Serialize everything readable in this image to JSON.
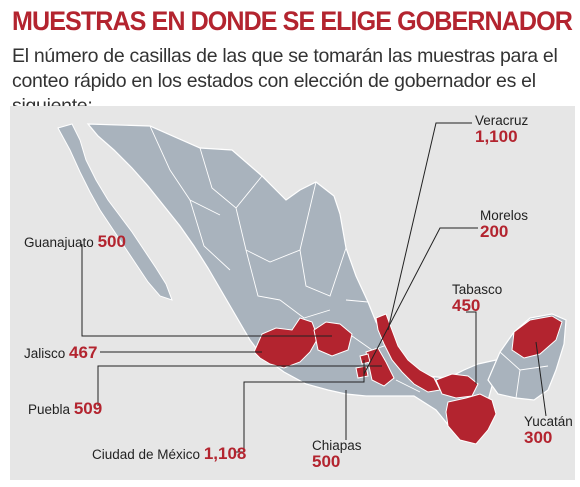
{
  "header": {
    "title": "MUESTRAS EN DONDE SE ELIGE GOBERNADOR",
    "subtitle": "El número de casillas de las que se tomarán las muestras para el conteo rápido en los estados con elección de gobernador es el siguiente:"
  },
  "colors": {
    "accent": "#b3242f",
    "land": "#a9b3bd",
    "highlight": "#b3242f",
    "background": "#e6e6e6"
  },
  "states": [
    {
      "name": "Veracruz",
      "value": "1,100"
    },
    {
      "name": "Morelos",
      "value": "200"
    },
    {
      "name": "Guanajuato",
      "value": "500"
    },
    {
      "name": "Tabasco",
      "value": "450"
    },
    {
      "name": "Jalisco",
      "value": "467"
    },
    {
      "name": "Puebla",
      "value": "509"
    },
    {
      "name": "Yucatán",
      "value": "300"
    },
    {
      "name": "Ciudad de México",
      "value": "1,108"
    },
    {
      "name": "Chiapas",
      "value": "500"
    }
  ]
}
